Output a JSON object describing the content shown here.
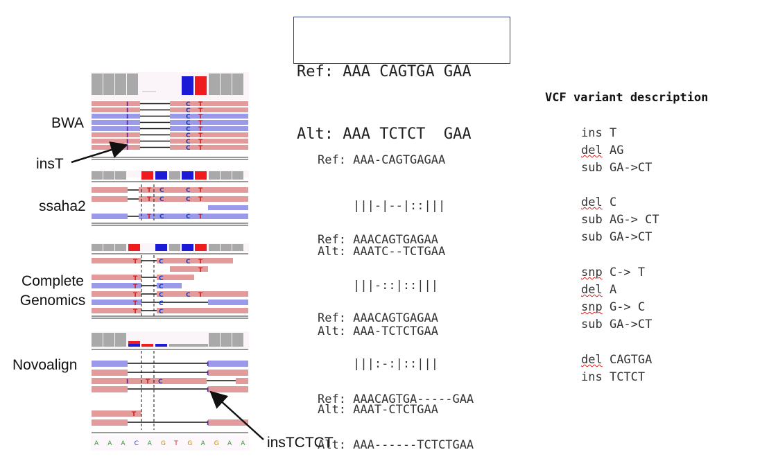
{
  "ref_box": {
    "ref": "Ref: AAA CAGTGA GAA",
    "alt": "Alt: AAA TCTCT  GAA"
  },
  "aligners": [
    {
      "name": "BWA"
    },
    {
      "name": "ssaha2"
    },
    {
      "name": "Complete\nGenomics"
    },
    {
      "name": "Novoalign"
    }
  ],
  "annotations": {
    "ins_t": "insT",
    "ins_tctct": "insTCTCT"
  },
  "reference_track": [
    "A",
    "A",
    "A",
    "C",
    "A",
    "G",
    "T",
    "G",
    "A",
    "G",
    "A",
    "A"
  ],
  "base_colors": {
    "A": "#2ca02c",
    "C": "#1f3fbf",
    "G": "#c88a00",
    "T": "#d62020"
  },
  "track_colors": {
    "pink": "#e39a9a",
    "blue": "#9a9ae8",
    "gray": "#a9a9a9",
    "red": "#ee1c1c",
    "deep_blue": "#1b1bd6"
  },
  "alignments": [
    {
      "ref": "Ref: AAA-CAGTGAGAA",
      "match": "     |||-|--|::|||",
      "alt": "Alt: AAATC--TCTGAA"
    },
    {
      "ref": "Ref: AAACAGTGAGAA",
      "match": "     |||-::|::|||",
      "alt": "Alt: AAA-TCTCTGAA"
    },
    {
      "ref": "Ref: AAACAGTGAGAA",
      "match": "     |||:-:|::|||",
      "alt": "Alt: AAAT-CTCTGAA"
    },
    {
      "ref": "Ref: AAACAGTGA-----GAA",
      "match": "",
      "alt": "Alt: AAA------TCTCTGAA"
    }
  ],
  "vcf_header": "VCF variant description",
  "vcf_groups": [
    [
      {
        "k": "ins",
        "v": "T"
      },
      {
        "k": "del",
        "v": "AG"
      },
      {
        "k": "sub",
        "v": "GA->CT"
      }
    ],
    [
      {
        "k": "del",
        "v": "C"
      },
      {
        "k": "sub",
        "v": "AG-> CT"
      },
      {
        "k": "sub",
        "v": "GA->CT"
      }
    ],
    [
      {
        "k": "snp",
        "v": "C-> T"
      },
      {
        "k": "del",
        "v": "A"
      },
      {
        "k": "snp",
        "v": "G-> C"
      },
      {
        "k": "sub",
        "v": "GA->CT"
      }
    ],
    [
      {
        "k": "del",
        "v": "CAGTGA"
      },
      {
        "k": "ins",
        "v": "TCTCT"
      }
    ]
  ]
}
